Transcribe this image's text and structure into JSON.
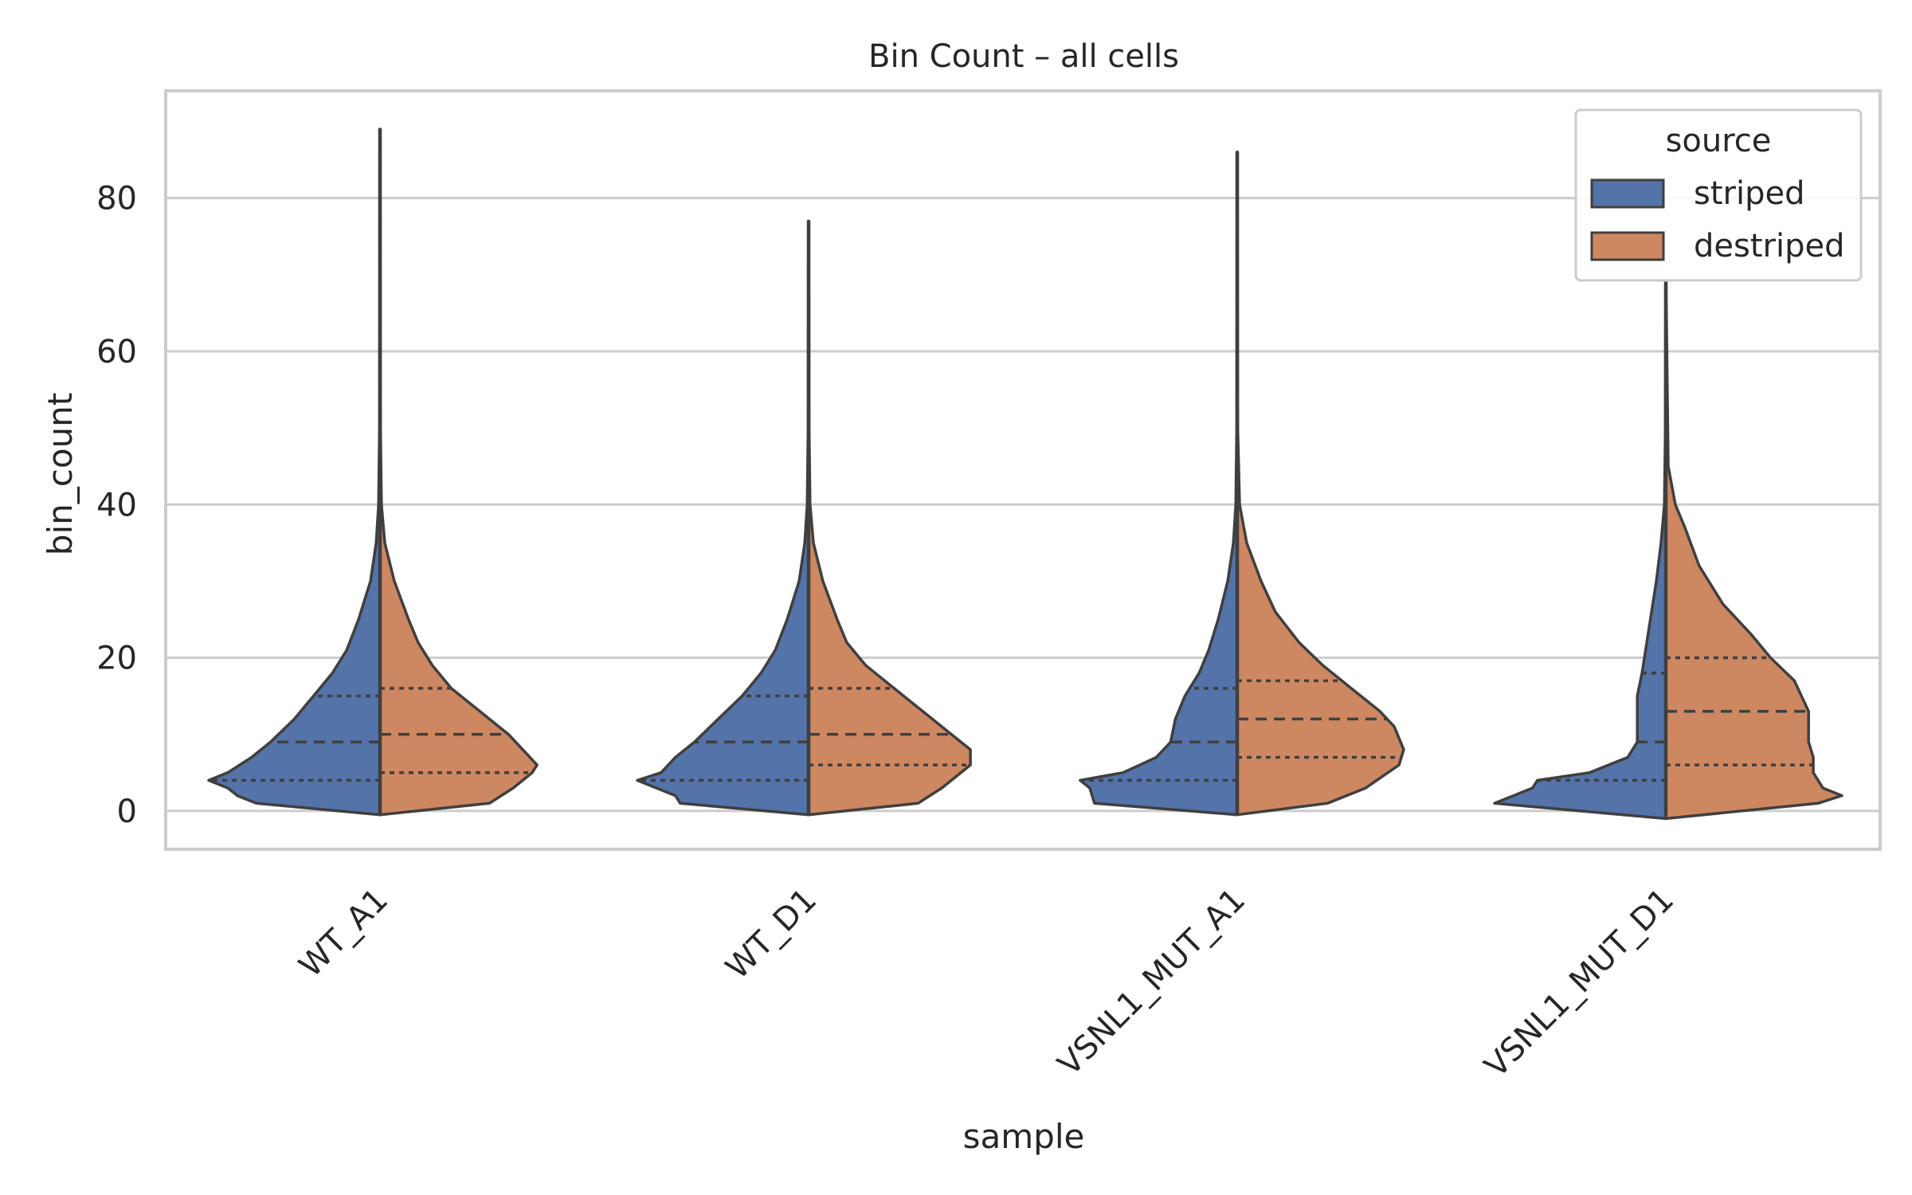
{
  "chart_data": {
    "type": "violin",
    "title": "Bin Count – all cells",
    "xlabel": "sample",
    "ylabel": "bin_count",
    "ylim": [
      -5,
      94
    ],
    "yticks": [
      0,
      20,
      40,
      60,
      80
    ],
    "grid": true,
    "split": true,
    "inner": "quartile",
    "categories": [
      "WT_A1",
      "WT_D1",
      "VSNL1_MUT_A1",
      "VSNL1_MUT_D1"
    ],
    "legend": {
      "title": "source",
      "position": "top-right",
      "entries": [
        "striped",
        "destriped"
      ]
    },
    "series": [
      {
        "name": "striped",
        "color": "#5473a8",
        "violins": [
          {
            "min": 1,
            "max": 89,
            "q1": 4,
            "median": 9,
            "q3": 15,
            "profile": [
              [
                -0.5,
                0
              ],
              [
                1,
                0.26
              ],
              [
                2,
                0.3
              ],
              [
                3,
                0.32
              ],
              [
                4,
                0.36
              ],
              [
                5,
                0.32
              ],
              [
                7,
                0.27
              ],
              [
                9,
                0.23
              ],
              [
                12,
                0.18
              ],
              [
                15,
                0.14
              ],
              [
                18,
                0.1
              ],
              [
                21,
                0.07
              ],
              [
                25,
                0.045
              ],
              [
                30,
                0.02
              ],
              [
                35,
                0.008
              ],
              [
                40,
                0.003
              ],
              [
                50,
                0.001
              ],
              [
                89,
                0.0005
              ]
            ]
          },
          {
            "min": 1,
            "max": 77,
            "q1": 4,
            "median": 9,
            "q3": 15,
            "profile": [
              [
                -0.5,
                0
              ],
              [
                1,
                0.27
              ],
              [
                2,
                0.28
              ],
              [
                3,
                0.32
              ],
              [
                4,
                0.36
              ],
              [
                5,
                0.31
              ],
              [
                7,
                0.28
              ],
              [
                9,
                0.24
              ],
              [
                12,
                0.19
              ],
              [
                15,
                0.14
              ],
              [
                18,
                0.1
              ],
              [
                21,
                0.07
              ],
              [
                25,
                0.045
              ],
              [
                30,
                0.02
              ],
              [
                35,
                0.008
              ],
              [
                40,
                0.003
              ],
              [
                50,
                0.001
              ],
              [
                77,
                0.0005
              ]
            ]
          },
          {
            "min": 1,
            "max": 86,
            "q1": 4,
            "median": 9,
            "q3": 16,
            "profile": [
              [
                -0.5,
                0
              ],
              [
                1,
                0.3
              ],
              [
                3,
                0.31
              ],
              [
                4,
                0.33
              ],
              [
                5,
                0.24
              ],
              [
                7,
                0.17
              ],
              [
                9,
                0.14
              ],
              [
                12,
                0.13
              ],
              [
                15,
                0.11
              ],
              [
                18,
                0.08
              ],
              [
                21,
                0.06
              ],
              [
                25,
                0.04
              ],
              [
                30,
                0.02
              ],
              [
                35,
                0.008
              ],
              [
                40,
                0.003
              ],
              [
                50,
                0.001
              ],
              [
                86,
                0.0005
              ]
            ]
          },
          {
            "min": 1,
            "max": 69,
            "q1": 4,
            "median": 9,
            "q3": 18,
            "profile": [
              [
                -1,
                0
              ],
              [
                1,
                0.36
              ],
              [
                2,
                0.32
              ],
              [
                3,
                0.28
              ],
              [
                4,
                0.27
              ],
              [
                5,
                0.16
              ],
              [
                7,
                0.08
              ],
              [
                9,
                0.06
              ],
              [
                12,
                0.06
              ],
              [
                15,
                0.06
              ],
              [
                18,
                0.05
              ],
              [
                22,
                0.04
              ],
              [
                26,
                0.03
              ],
              [
                30,
                0.02
              ],
              [
                35,
                0.01
              ],
              [
                40,
                0.003
              ],
              [
                50,
                0.001
              ],
              [
                69,
                0.0005
              ]
            ]
          }
        ]
      },
      {
        "name": "destriped",
        "color": "#cd8862",
        "violins": [
          {
            "min": 1,
            "max": 89,
            "q1": 5,
            "median": 10,
            "q3": 16,
            "profile": [
              [
                -0.5,
                0
              ],
              [
                1,
                0.23
              ],
              [
                3,
                0.28
              ],
              [
                5,
                0.32
              ],
              [
                6,
                0.33
              ],
              [
                8,
                0.3
              ],
              [
                10,
                0.27
              ],
              [
                13,
                0.21
              ],
              [
                16,
                0.15
              ],
              [
                19,
                0.11
              ],
              [
                22,
                0.08
              ],
              [
                25,
                0.06
              ],
              [
                30,
                0.03
              ],
              [
                35,
                0.01
              ],
              [
                40,
                0.003
              ],
              [
                50,
                0.001
              ],
              [
                89,
                0.0005
              ]
            ]
          },
          {
            "min": 1,
            "max": 77,
            "q1": 6,
            "median": 10,
            "q3": 16,
            "profile": [
              [
                -0.5,
                0
              ],
              [
                1,
                0.23
              ],
              [
                3,
                0.28
              ],
              [
                6,
                0.34
              ],
              [
                8,
                0.34
              ],
              [
                10,
                0.3
              ],
              [
                13,
                0.24
              ],
              [
                16,
                0.18
              ],
              [
                19,
                0.12
              ],
              [
                22,
                0.08
              ],
              [
                25,
                0.06
              ],
              [
                30,
                0.03
              ],
              [
                35,
                0.01
              ],
              [
                40,
                0.003
              ],
              [
                50,
                0.001
              ],
              [
                77,
                0.0005
              ]
            ]
          },
          {
            "min": 1,
            "max": 86,
            "q1": 7,
            "median": 12,
            "q3": 17,
            "profile": [
              [
                -0.5,
                0
              ],
              [
                1,
                0.19
              ],
              [
                3,
                0.27
              ],
              [
                6,
                0.34
              ],
              [
                8,
                0.35
              ],
              [
                11,
                0.33
              ],
              [
                13,
                0.3
              ],
              [
                16,
                0.24
              ],
              [
                19,
                0.18
              ],
              [
                22,
                0.13
              ],
              [
                26,
                0.08
              ],
              [
                30,
                0.05
              ],
              [
                35,
                0.02
              ],
              [
                40,
                0.005
              ],
              [
                50,
                0.001
              ],
              [
                86,
                0.0005
              ]
            ]
          },
          {
            "min": 1,
            "max": 69,
            "q1": 6,
            "median": 13,
            "q3": 20,
            "profile": [
              [
                -1,
                0
              ],
              [
                1,
                0.32
              ],
              [
                2,
                0.37
              ],
              [
                3,
                0.33
              ],
              [
                5,
                0.31
              ],
              [
                7,
                0.31
              ],
              [
                9,
                0.3
              ],
              [
                13,
                0.3
              ],
              [
                17,
                0.27
              ],
              [
                20,
                0.22
              ],
              [
                23,
                0.18
              ],
              [
                27,
                0.12
              ],
              [
                32,
                0.07
              ],
              [
                37,
                0.04
              ],
              [
                40,
                0.02
              ],
              [
                45,
                0.005
              ],
              [
                69,
                0.0005
              ]
            ]
          }
        ]
      }
    ]
  }
}
